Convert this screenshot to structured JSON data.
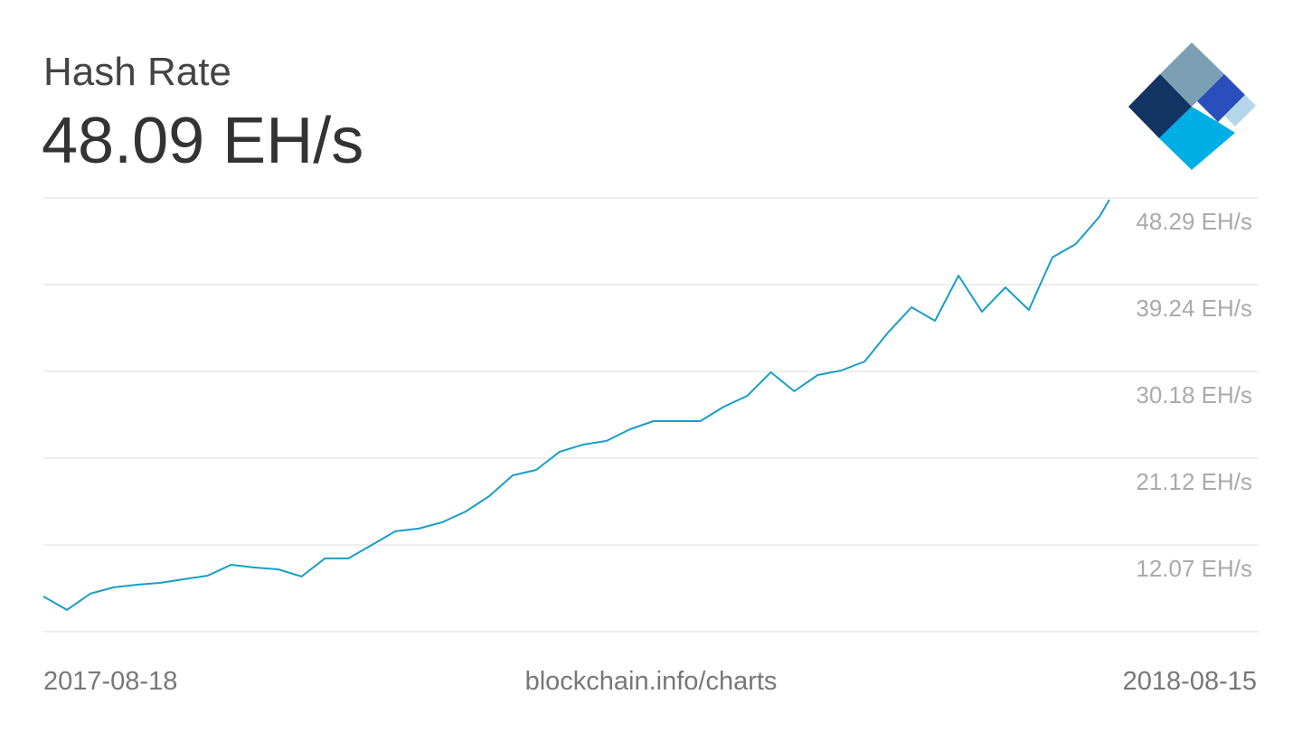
{
  "chart_data": {
    "type": "line",
    "title": "Hash Rate",
    "subtitle": "48.09 EH/s",
    "source": "blockchain.info/charts",
    "x": [
      "2017-08-18",
      "2017-08-25",
      "2017-09-01",
      "2017-09-08",
      "2017-09-15",
      "2017-09-22",
      "2017-09-29",
      "2017-10-06",
      "2017-10-13",
      "2017-10-20",
      "2017-10-27",
      "2017-11-03",
      "2017-11-10",
      "2017-11-17",
      "2017-11-24",
      "2017-12-01",
      "2017-12-08",
      "2017-12-15",
      "2017-12-22",
      "2017-12-29",
      "2018-01-05",
      "2018-01-12",
      "2018-01-19",
      "2018-01-26",
      "2018-02-02",
      "2018-02-09",
      "2018-02-16",
      "2018-02-23",
      "2018-03-02",
      "2018-03-09",
      "2018-03-16",
      "2018-03-23",
      "2018-03-30",
      "2018-04-06",
      "2018-04-13",
      "2018-04-20",
      "2018-04-27",
      "2018-05-04",
      "2018-05-11",
      "2018-05-18",
      "2018-05-25",
      "2018-06-01",
      "2018-06-08",
      "2018-06-15",
      "2018-06-22",
      "2018-06-29",
      "2018-07-02"
    ],
    "values": [
      6.69,
      5.28,
      6.98,
      7.64,
      7.92,
      8.11,
      8.49,
      8.86,
      9.99,
      9.71,
      9.52,
      8.77,
      10.66,
      10.66,
      12.07,
      13.49,
      13.77,
      14.43,
      15.56,
      17.16,
      19.33,
      19.9,
      21.79,
      22.54,
      22.92,
      24.14,
      24.99,
      24.99,
      24.99,
      26.5,
      27.63,
      30.09,
      28.11,
      29.8,
      30.27,
      31.22,
      34.24,
      36.88,
      35.46,
      40.18,
      36.41,
      38.95,
      36.59,
      42.07,
      43.48,
      46.31,
      48.09
    ],
    "color": "#1a9dc8",
    "xlim": [
      "2017-08-18",
      "2018-08-15"
    ],
    "ylim": [
      3.01,
      48.29
    ],
    "yticks": [
      {
        "value": 48.29,
        "label": "48.29 EH/s"
      },
      {
        "value": 39.24,
        "label": "39.24 EH/s"
      },
      {
        "value": 30.18,
        "label": "30.18 EH/s"
      },
      {
        "value": 21.12,
        "label": "21.12 EH/s"
      },
      {
        "value": 12.07,
        "label": "12.07 EH/s"
      }
    ],
    "grid": true
  }
}
